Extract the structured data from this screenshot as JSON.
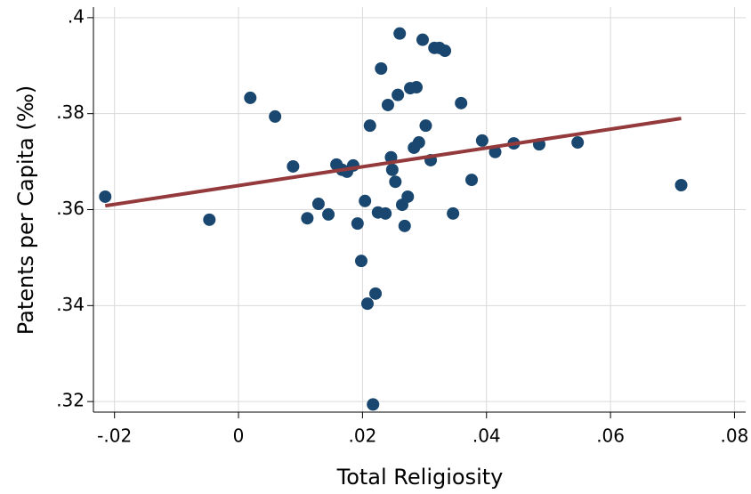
{
  "chart_data": {
    "type": "scatter",
    "x_label": "Total Religiosity",
    "y_label": "Patents per Capita (‰)",
    "xlim": [
      -0.0234,
      0.0818
    ],
    "ylim": [
      0.3178,
      0.4022
    ],
    "xticks": [
      {
        "value": -0.02,
        "label": "-.02"
      },
      0,
      {
        "value": 0.02,
        "label": ".02"
      },
      {
        "value": 0.04,
        "label": ".04"
      },
      {
        "value": 0.06,
        "label": ".06"
      },
      {
        "value": 0.08,
        "label": ".08"
      }
    ],
    "yticks": [
      {
        "value": 0.32,
        "label": ".32"
      },
      {
        "value": 0.34,
        "label": ".34"
      },
      {
        "value": 0.36,
        "label": ".36"
      },
      {
        "value": 0.38,
        "label": ".38"
      },
      {
        "value": 0.4,
        "label": ".4"
      }
    ],
    "grid": true,
    "series": [
      {
        "type": "scatter",
        "color": "#1a476f",
        "x": [
          -0.0215,
          -0.0047,
          0.0019,
          0.0059,
          0.0088,
          0.0111,
          0.0129,
          0.0145,
          0.0158,
          0.0167,
          0.0175,
          0.0185,
          0.0192,
          0.0198,
          0.0204,
          0.0208,
          0.0212,
          0.0217,
          0.0221,
          0.0225,
          0.023,
          0.0237,
          0.0241,
          0.0246,
          0.0248,
          0.0253,
          0.0257,
          0.026,
          0.0264,
          0.0268,
          0.0273,
          0.0277,
          0.0283,
          0.0287,
          0.0291,
          0.0297,
          0.0302,
          0.031,
          0.0316,
          0.0324,
          0.0333,
          0.0346,
          0.0359,
          0.0376,
          0.0393,
          0.0414,
          0.0444,
          0.0485,
          0.0547,
          0.0714
        ],
        "values": [
          0.3627,
          0.3579,
          0.3833,
          0.3794,
          0.369,
          0.3582,
          0.3612,
          0.359,
          0.3694,
          0.3683,
          0.3679,
          0.3692,
          0.3571,
          0.3493,
          0.3618,
          0.3404,
          0.3775,
          0.3194,
          0.3425,
          0.3594,
          0.3894,
          0.3592,
          0.3818,
          0.3709,
          0.3683,
          0.3658,
          0.3839,
          0.3967,
          0.361,
          0.3566,
          0.3627,
          0.3853,
          0.3729,
          0.3855,
          0.374,
          0.3954,
          0.3775,
          0.3703,
          0.3937,
          0.3937,
          0.3931,
          0.3592,
          0.3822,
          0.3662,
          0.3744,
          0.372,
          0.3738,
          0.3736,
          0.374,
          0.3651
        ]
      },
      {
        "type": "line",
        "color": "#943a3c",
        "x": [
          -0.0215,
          0.0714
        ],
        "values": [
          0.3608,
          0.379
        ]
      }
    ]
  }
}
